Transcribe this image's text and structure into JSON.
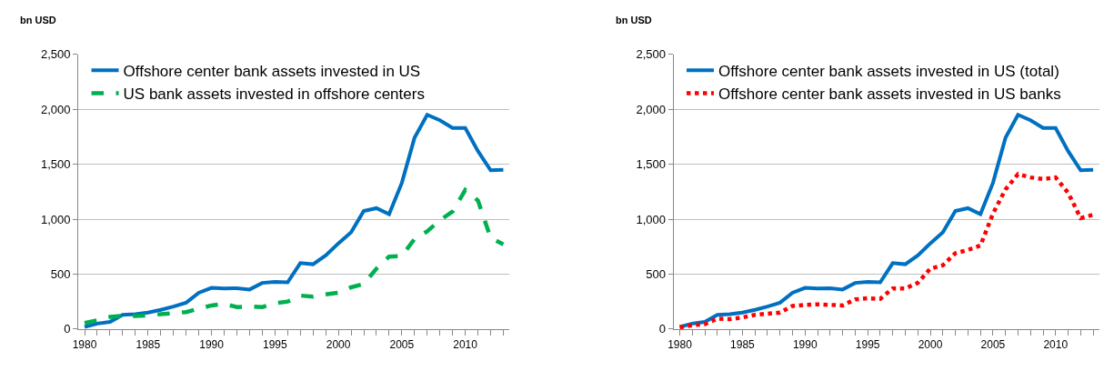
{
  "chart_data": [
    {
      "type": "line",
      "ylabel": "bn USD",
      "x": [
        1980,
        1981,
        1982,
        1983,
        1984,
        1985,
        1986,
        1987,
        1988,
        1989,
        1990,
        1991,
        1992,
        1993,
        1994,
        1995,
        1996,
        1997,
        1998,
        1999,
        2000,
        2001,
        2002,
        2003,
        2004,
        2005,
        2006,
        2007,
        2008,
        2009,
        2010,
        2011,
        2012,
        2013
      ],
      "series": [
        {
          "name": "Offshore center bank assets invested in US",
          "color": "#0070c0",
          "line_style": "solid",
          "values": [
            20,
            50,
            65,
            130,
            135,
            150,
            175,
            205,
            240,
            330,
            375,
            370,
            372,
            360,
            420,
            430,
            425,
            600,
            590,
            670,
            780,
            880,
            1075,
            1100,
            1045,
            1330,
            1740,
            1950,
            1900,
            1830,
            1830,
            1620,
            1445,
            1450
          ]
        },
        {
          "name": "US bank assets invested in offshore centers",
          "color": "#00b050",
          "line_style": "dashed",
          "values": [
            55,
            80,
            110,
            120,
            120,
            125,
            135,
            145,
            155,
            185,
            215,
            230,
            200,
            205,
            200,
            235,
            250,
            305,
            295,
            315,
            330,
            380,
            410,
            550,
            660,
            665,
            820,
            890,
            990,
            1070,
            1265,
            1170,
            830,
            770
          ]
        }
      ],
      "xlim": [
        1979.5,
        2013.5
      ],
      "xticks": [
        1980,
        1985,
        1990,
        1995,
        2000,
        2005,
        2010
      ],
      "ylim": [
        0,
        2500
      ],
      "yticks": [
        0,
        {
          "value": 500,
          "label": "500"
        },
        {
          "value": 1000,
          "label": "1,000"
        },
        {
          "value": 1500,
          "label": "1,500"
        },
        {
          "value": 2000,
          "label": "2,000"
        },
        {
          "value": 2500,
          "label": "2,500"
        }
      ],
      "grid": "y",
      "legend": "top left",
      "marker": "none"
    },
    {
      "type": "line",
      "ylabel": "bn USD",
      "x": [
        1980,
        1981,
        1982,
        1983,
        1984,
        1985,
        1986,
        1987,
        1988,
        1989,
        1990,
        1991,
        1992,
        1993,
        1994,
        1995,
        1996,
        1997,
        1998,
        1999,
        2000,
        2001,
        2002,
        2003,
        2004,
        2005,
        2006,
        2007,
        2008,
        2009,
        2010,
        2011,
        2012,
        2013
      ],
      "series": [
        {
          "name": "Offshore center bank assets invested in US (total)",
          "color": "#0070c0",
          "line_style": "solid",
          "values": [
            20,
            50,
            65,
            130,
            135,
            150,
            175,
            205,
            240,
            330,
            375,
            370,
            372,
            360,
            420,
            430,
            425,
            600,
            590,
            670,
            780,
            880,
            1075,
            1100,
            1045,
            1330,
            1740,
            1950,
            1900,
            1830,
            1830,
            1620,
            1445,
            1450
          ]
        },
        {
          "name": "Offshore center bank assets invested in US banks",
          "color": "#ff0000",
          "line_style": "dotted",
          "values": [
            15,
            35,
            45,
            95,
            90,
            105,
            130,
            140,
            150,
            210,
            220,
            225,
            220,
            215,
            270,
            280,
            275,
            370,
            370,
            420,
            550,
            580,
            690,
            720,
            760,
            1050,
            1270,
            1410,
            1380,
            1365,
            1380,
            1240,
            1010,
            1040
          ]
        }
      ],
      "xlim": [
        1979.5,
        2013.5
      ],
      "xticks": [
        1980,
        1985,
        1990,
        1995,
        2000,
        2005,
        2010
      ],
      "ylim": [
        0,
        2500
      ],
      "yticks": [
        0,
        {
          "value": 500,
          "label": "500"
        },
        {
          "value": 1000,
          "label": "1,000"
        },
        {
          "value": 1500,
          "label": "1,500"
        },
        {
          "value": 2000,
          "label": "2,000"
        },
        {
          "value": 2500,
          "label": "2,500"
        }
      ],
      "grid": "y",
      "legend": "top left",
      "marker": "none"
    }
  ]
}
